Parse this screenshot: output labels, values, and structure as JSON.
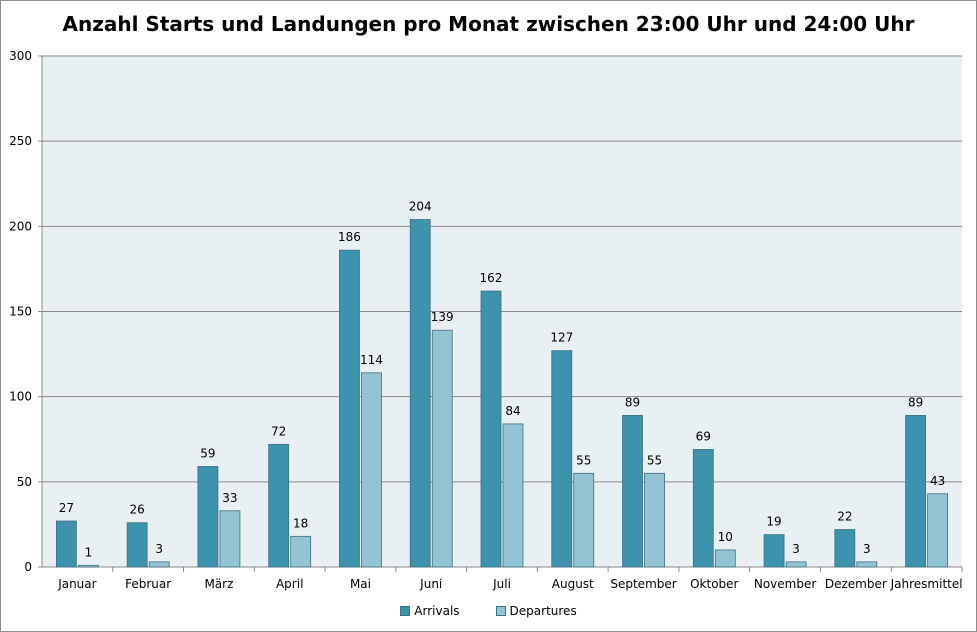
{
  "chart_data": {
    "type": "bar",
    "title": "Anzahl Starts und Landungen pro Monat zwischen 23:00 Uhr und 24:00 Uhr",
    "xlabel": "",
    "ylabel": "",
    "ylim": [
      0,
      300
    ],
    "yticks": [
      "0",
      "50",
      "100",
      "150",
      "200",
      "250",
      "300"
    ],
    "grid": true,
    "legend_position": "bottom",
    "categories": [
      "Januar",
      "Februar",
      "März",
      "April",
      "Mai",
      "Juni",
      "Juli",
      "August",
      "September",
      "Oktober",
      "November",
      "Dezember",
      "Jahresmittel"
    ],
    "series": [
      {
        "name": "Arrivals",
        "color": "#3d93ae",
        "values": [
          27,
          26,
          59,
          72,
          186,
          204,
          162,
          127,
          89,
          69,
          19,
          22,
          89
        ]
      },
      {
        "name": "Departures",
        "color": "#93c4d4",
        "values": [
          1,
          3,
          33,
          18,
          114,
          139,
          84,
          55,
          55,
          10,
          3,
          3,
          43
        ]
      }
    ],
    "plot_background": "#e9f0f3"
  }
}
